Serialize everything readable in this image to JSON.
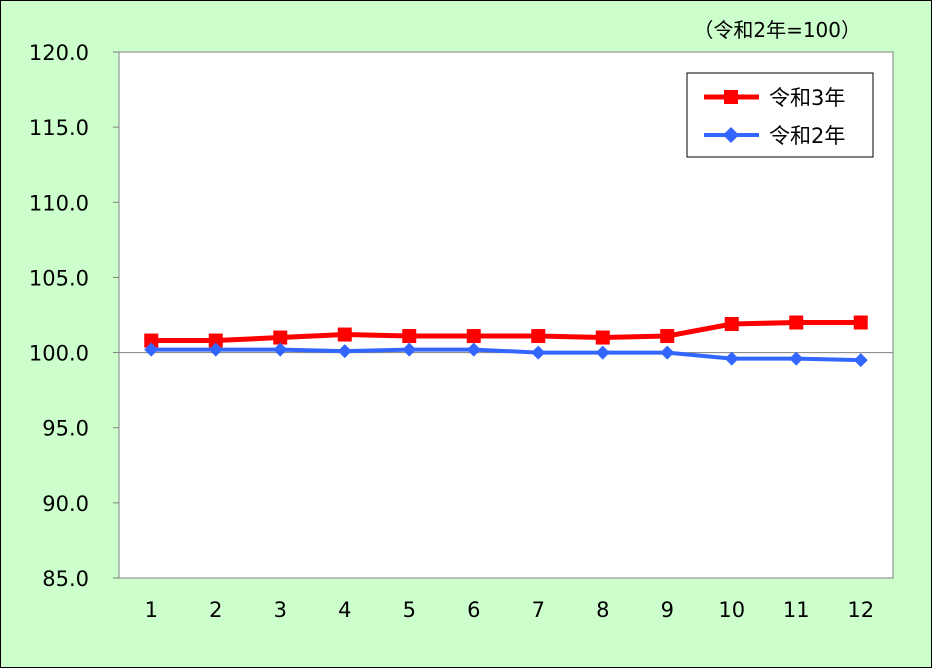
{
  "chart_data": {
    "type": "line",
    "unit_note": "（令和2年=100）",
    "categories": [
      "1",
      "2",
      "3",
      "4",
      "5",
      "6",
      "7",
      "8",
      "9",
      "10",
      "11",
      "12"
    ],
    "series": [
      {
        "name": "令和3年",
        "color": "#ff0000",
        "marker": "square",
        "values": [
          100.8,
          100.8,
          101.0,
          101.2,
          101.1,
          101.1,
          101.1,
          101.0,
          101.1,
          101.9,
          102.0,
          102.0
        ]
      },
      {
        "name": "令和2年",
        "color": "#3366ff",
        "marker": "diamond",
        "values": [
          100.2,
          100.2,
          100.2,
          100.1,
          100.2,
          100.2,
          100.0,
          100.0,
          100.0,
          99.6,
          99.6,
          99.5
        ]
      }
    ],
    "yticks": [
      "85.0",
      "90.0",
      "95.0",
      "100.0",
      "105.0",
      "110.0",
      "115.0",
      "120.0"
    ],
    "ylim": [
      85,
      120
    ],
    "grid": false,
    "reference_line": 100,
    "legend_position": "top-right",
    "background": "#ccffcc",
    "plot_background": "#ffffff"
  }
}
